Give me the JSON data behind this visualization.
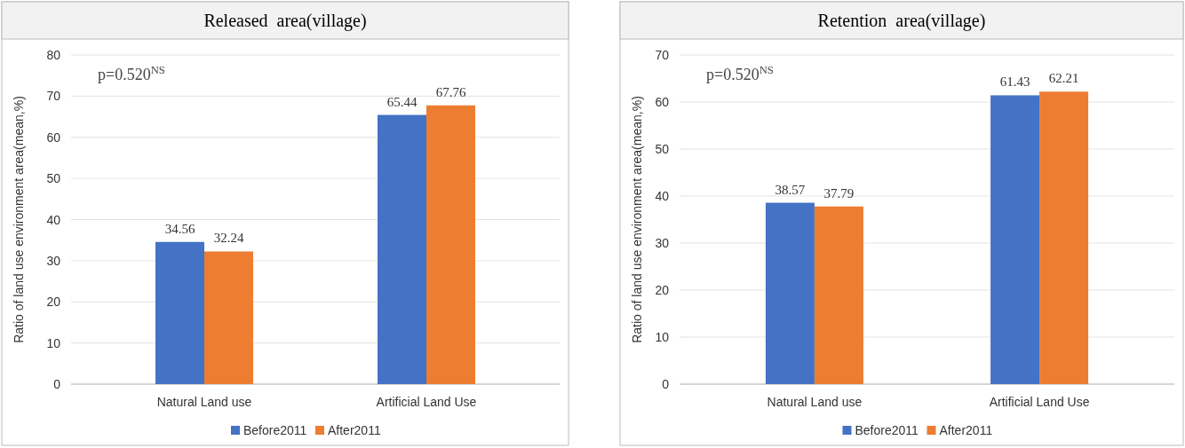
{
  "chart_data": [
    {
      "type": "bar",
      "title": "Released  area(village)",
      "ylabel": "Ratio of land use environment area(mean,%)",
      "categories": [
        "Natural Land use",
        "Artificial Land Use"
      ],
      "series": [
        {
          "name": "Before2011",
          "color": "#4472c4",
          "values": [
            34.56,
            65.44
          ]
        },
        {
          "name": "After2011",
          "color": "#ed7d31",
          "values": [
            32.24,
            67.76
          ]
        }
      ],
      "ylim": [
        0,
        80
      ],
      "yticks": [
        0,
        10,
        20,
        30,
        40,
        50,
        60,
        70,
        80
      ],
      "grid": "y",
      "legend": "bottom",
      "data_labels": true,
      "annotations": [
        "p=0.520$^{NS}$"
      ]
    },
    {
      "type": "bar",
      "title": "Retention  area(village)",
      "ylabel": "Ratio of land use environment area(mean,%)",
      "categories": [
        "Natural Land use",
        "Artificial Land Use"
      ],
      "series": [
        {
          "name": "Before2011",
          "color": "#4472c4",
          "values": [
            38.57,
            61.43
          ]
        },
        {
          "name": "After2011",
          "color": "#ed7d31",
          "values": [
            37.79,
            62.21
          ]
        }
      ],
      "ylim": [
        0,
        70
      ],
      "yticks": [
        0,
        10,
        20,
        30,
        40,
        50,
        60,
        70
      ],
      "grid": "y",
      "legend": "bottom",
      "data_labels": true,
      "annotations": [
        "p=0.520$^{NS}$"
      ]
    }
  ]
}
